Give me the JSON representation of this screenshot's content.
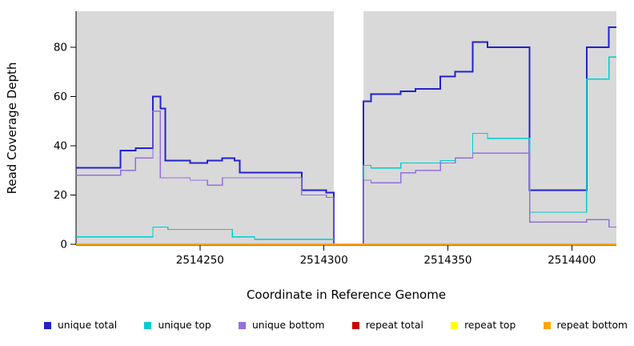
{
  "chart_data": {
    "type": "line",
    "title": "",
    "xlabel": "Coordinate in Reference Genome",
    "ylabel": "Read Coverage Depth",
    "xlim": [
      2514200,
      2514418
    ],
    "ylim": [
      0,
      90
    ],
    "x_ticks": [
      2514250,
      2514300,
      2514350,
      2514400
    ],
    "y_ticks": [
      0,
      20,
      40,
      60,
      80
    ],
    "grid": false,
    "legend_position": "bottom",
    "panel_bg": "#d9d9d9",
    "axis_color": "#000000",
    "gap_region": [
      2514304,
      2514316
    ],
    "series": [
      {
        "id": "unique-total",
        "name": "unique total",
        "color": "#2222CC",
        "width": 2,
        "steps": [
          [
            2514200,
            31
          ],
          [
            2514218,
            38
          ],
          [
            2514224,
            39
          ],
          [
            2514231,
            60
          ],
          [
            2514234,
            55
          ],
          [
            2514236,
            34
          ],
          [
            2514246,
            33
          ],
          [
            2514253,
            34
          ],
          [
            2514259,
            35
          ],
          [
            2514264,
            34
          ],
          [
            2514266,
            29
          ],
          [
            2514291,
            22
          ],
          [
            2514301,
            21
          ],
          [
            2514304,
            0
          ],
          [
            2514316,
            58
          ],
          [
            2514319,
            61
          ],
          [
            2514331,
            62
          ],
          [
            2514337,
            63
          ],
          [
            2514347,
            68
          ],
          [
            2514353,
            70
          ],
          [
            2514360,
            82
          ],
          [
            2514366,
            80
          ],
          [
            2514383,
            22
          ],
          [
            2514406,
            80
          ],
          [
            2514415,
            88
          ],
          [
            2514418,
            88
          ]
        ]
      },
      {
        "id": "unique-top",
        "name": "unique top",
        "color": "#00CDCD",
        "width": 1.3,
        "steps": [
          [
            2514200,
            3
          ],
          [
            2514231,
            7
          ],
          [
            2514237,
            6
          ],
          [
            2514263,
            3
          ],
          [
            2514272,
            2
          ],
          [
            2514304,
            0
          ],
          [
            2514316,
            32
          ],
          [
            2514319,
            31
          ],
          [
            2514331,
            33
          ],
          [
            2514347,
            34
          ],
          [
            2514353,
            35
          ],
          [
            2514360,
            45
          ],
          [
            2514366,
            43
          ],
          [
            2514383,
            13
          ],
          [
            2514406,
            67
          ],
          [
            2514415,
            76
          ],
          [
            2514418,
            76
          ]
        ]
      },
      {
        "id": "unique-bottom",
        "name": "unique bottom",
        "color": "#9370DB",
        "width": 1.3,
        "steps": [
          [
            2514200,
            28
          ],
          [
            2514218,
            30
          ],
          [
            2514224,
            35
          ],
          [
            2514231,
            54
          ],
          [
            2514234,
            27
          ],
          [
            2514246,
            26
          ],
          [
            2514253,
            24
          ],
          [
            2514259,
            27
          ],
          [
            2514291,
            20
          ],
          [
            2514301,
            19
          ],
          [
            2514304,
            0
          ],
          [
            2514316,
            26
          ],
          [
            2514319,
            25
          ],
          [
            2514331,
            29
          ],
          [
            2514337,
            30
          ],
          [
            2514347,
            33
          ],
          [
            2514353,
            35
          ],
          [
            2514360,
            37
          ],
          [
            2514383,
            9
          ],
          [
            2514406,
            10
          ],
          [
            2514415,
            7
          ],
          [
            2514418,
            7
          ]
        ]
      },
      {
        "id": "repeat-total",
        "name": "repeat total",
        "color": "#CD0000",
        "width": 1.3,
        "steps": [
          [
            2514200,
            0
          ],
          [
            2514418,
            0
          ]
        ]
      },
      {
        "id": "repeat-top",
        "name": "repeat top",
        "color": "#FFFF00",
        "width": 1.3,
        "steps": [
          [
            2514200,
            0
          ],
          [
            2514418,
            0
          ]
        ]
      },
      {
        "id": "repeat-bottom",
        "name": "repeat bottom",
        "color": "#FFA500",
        "width": 1.6,
        "steps": [
          [
            2514200,
            0
          ],
          [
            2514418,
            0
          ]
        ]
      }
    ]
  }
}
